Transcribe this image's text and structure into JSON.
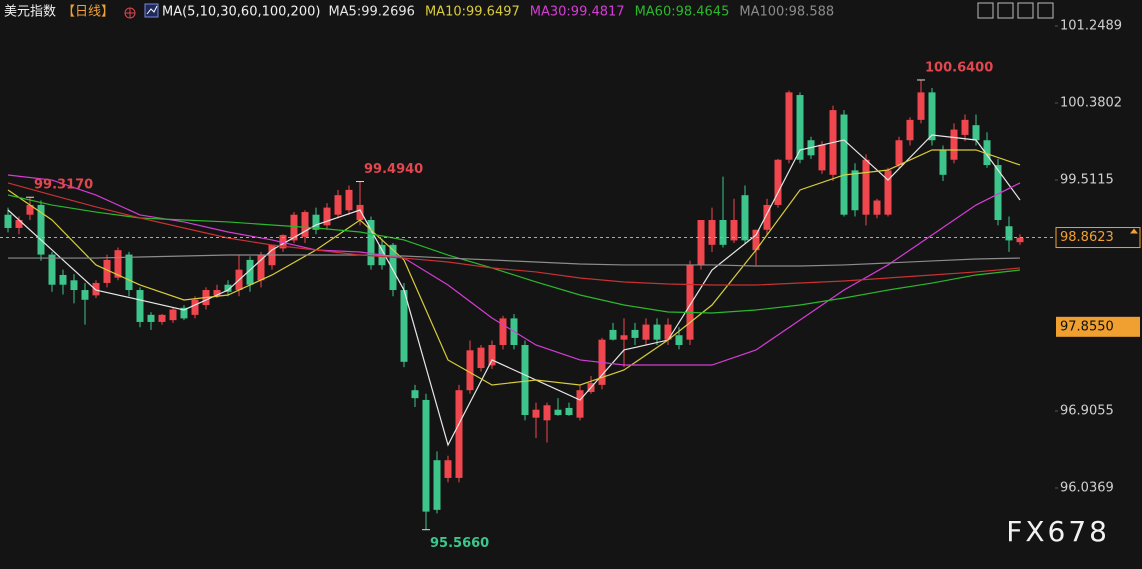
{
  "header": {
    "name": "美元指数",
    "period": "【日线】",
    "ma_params": "MA(5,10,30,60,100,200)"
  },
  "chart_data": {
    "type": "candlestick",
    "up_color": "#f0464e",
    "down_color": "#3ec58c",
    "ylim": [
      95.1227,
      101.5422
    ],
    "yticks": [
      101.2489,
      100.3802,
      99.5115,
      96.9055,
      96.0369
    ],
    "last_price": 98.8623,
    "last_price_color": "#f0a035",
    "marker_price": {
      "value": 97.855,
      "label": "97.8550"
    },
    "marker_color": "#f0a030",
    "candles": [
      [
        99.12,
        99.2,
        98.92,
        98.97
      ],
      [
        98.97,
        99.1,
        98.9,
        99.06
      ],
      [
        99.12,
        99.317,
        99.06,
        99.23
      ],
      [
        99.23,
        99.28,
        98.6,
        98.67
      ],
      [
        98.67,
        98.7,
        98.25,
        98.33
      ],
      [
        98.44,
        98.5,
        98.22,
        98.33
      ],
      [
        98.38,
        98.45,
        98.12,
        98.27
      ],
      [
        98.27,
        98.35,
        97.88,
        98.16
      ],
      [
        98.21,
        98.38,
        98.18,
        98.35
      ],
      [
        98.35,
        98.67,
        98.3,
        98.61
      ],
      [
        98.41,
        98.75,
        98.38,
        98.72
      ],
      [
        98.67,
        98.7,
        98.2,
        98.27
      ],
      [
        98.27,
        98.3,
        97.85,
        97.91
      ],
      [
        97.99,
        98.02,
        97.82,
        97.91
      ],
      [
        97.91,
        98.0,
        97.88,
        97.99
      ],
      [
        97.93,
        98.07,
        97.9,
        98.05
      ],
      [
        98.07,
        98.1,
        97.93,
        97.95
      ],
      [
        97.99,
        98.2,
        97.95,
        98.16
      ],
      [
        98.1,
        98.3,
        98.05,
        98.27
      ],
      [
        98.21,
        98.33,
        98.18,
        98.27
      ],
      [
        98.33,
        98.38,
        98.2,
        98.25
      ],
      [
        98.27,
        98.67,
        98.2,
        98.5
      ],
      [
        98.61,
        98.65,
        98.25,
        98.33
      ],
      [
        98.38,
        98.7,
        98.3,
        98.67
      ],
      [
        98.55,
        98.78,
        98.5,
        98.78
      ],
      [
        98.74,
        98.9,
        98.7,
        98.89
      ],
      [
        98.83,
        99.15,
        98.8,
        99.12
      ],
      [
        98.87,
        99.17,
        98.8,
        99.15
      ],
      [
        99.12,
        99.2,
        98.9,
        98.95
      ],
      [
        99.0,
        99.25,
        98.95,
        99.2
      ],
      [
        99.12,
        99.4,
        99.08,
        99.34
      ],
      [
        99.17,
        99.45,
        99.12,
        99.4
      ],
      [
        99.06,
        99.494,
        99.0,
        99.23
      ],
      [
        99.06,
        99.1,
        98.5,
        98.55
      ],
      [
        98.78,
        98.85,
        98.5,
        98.55
      ],
      [
        98.78,
        98.8,
        98.2,
        98.27
      ],
      [
        98.27,
        98.35,
        97.4,
        97.46
      ],
      [
        97.14,
        97.2,
        96.95,
        97.05
      ],
      [
        97.03,
        97.1,
        95.566,
        95.77
      ],
      [
        96.35,
        96.45,
        95.75,
        95.79
      ],
      [
        96.15,
        96.4,
        96.1,
        96.35
      ],
      [
        96.15,
        97.2,
        96.1,
        97.14
      ],
      [
        97.14,
        97.7,
        97.1,
        97.59
      ],
      [
        97.39,
        97.65,
        97.35,
        97.62
      ],
      [
        97.42,
        97.7,
        97.38,
        97.65
      ],
      [
        97.65,
        97.98,
        97.6,
        97.95
      ],
      [
        97.95,
        98.0,
        97.6,
        97.65
      ],
      [
        97.65,
        97.7,
        96.8,
        96.86
      ],
      [
        96.83,
        97.0,
        96.6,
        96.92
      ],
      [
        96.8,
        97.0,
        96.55,
        96.97
      ],
      [
        96.92,
        97.05,
        96.85,
        96.86
      ],
      [
        96.94,
        97.0,
        96.85,
        96.86
      ],
      [
        96.83,
        97.2,
        96.8,
        97.14
      ],
      [
        97.12,
        97.3,
        97.1,
        97.22
      ],
      [
        97.2,
        97.73,
        97.15,
        97.71
      ],
      [
        97.82,
        97.9,
        97.7,
        97.71
      ],
      [
        97.71,
        97.95,
        97.4,
        97.76
      ],
      [
        97.82,
        97.9,
        97.65,
        97.73
      ],
      [
        97.71,
        97.95,
        97.65,
        97.88
      ],
      [
        97.88,
        97.95,
        97.65,
        97.71
      ],
      [
        97.71,
        97.95,
        97.65,
        97.88
      ],
      [
        97.76,
        97.85,
        97.6,
        97.65
      ],
      [
        97.71,
        98.6,
        97.65,
        98.55
      ],
      [
        98.55,
        99.0,
        98.5,
        99.06
      ],
      [
        98.78,
        99.2,
        98.7,
        99.06
      ],
      [
        99.06,
        99.55,
        98.75,
        98.78
      ],
      [
        98.83,
        99.3,
        98.8,
        99.06
      ],
      [
        99.34,
        99.45,
        98.8,
        98.83
      ],
      [
        98.72,
        98.95,
        98.55,
        98.95
      ],
      [
        98.95,
        99.3,
        98.9,
        99.23
      ],
      [
        99.23,
        99.75,
        99.2,
        99.74
      ],
      [
        99.74,
        100.52,
        99.7,
        100.5
      ],
      [
        100.47,
        100.5,
        99.7,
        99.74
      ],
      [
        99.96,
        100.0,
        99.75,
        99.79
      ],
      [
        99.62,
        99.95,
        99.58,
        99.91
      ],
      [
        99.57,
        100.35,
        99.5,
        100.3
      ],
      [
        100.25,
        100.3,
        99.1,
        99.12
      ],
      [
        99.62,
        99.7,
        99.1,
        99.17
      ],
      [
        99.12,
        99.8,
        99.0,
        99.74
      ],
      [
        99.12,
        99.3,
        99.08,
        99.28
      ],
      [
        99.12,
        99.65,
        99.1,
        99.62
      ],
      [
        99.68,
        100.0,
        99.65,
        99.96
      ],
      [
        99.96,
        100.22,
        99.9,
        100.19
      ],
      [
        100.19,
        100.64,
        100.15,
        100.5
      ],
      [
        100.5,
        100.55,
        99.9,
        99.96
      ],
      [
        99.85,
        99.9,
        99.5,
        99.57
      ],
      [
        99.74,
        100.15,
        99.7,
        100.08
      ],
      [
        100.02,
        100.25,
        99.95,
        100.19
      ],
      [
        100.13,
        100.25,
        99.9,
        99.96
      ],
      [
        99.96,
        100.05,
        99.65,
        99.68
      ],
      [
        99.68,
        99.75,
        99.0,
        99.06
      ],
      [
        98.99,
        99.1,
        98.7,
        98.83
      ],
      [
        98.81,
        98.9,
        98.78,
        98.86
      ]
    ],
    "ma_x": [
      0,
      4,
      8,
      12,
      16,
      20,
      24,
      28,
      32,
      36,
      40,
      44,
      48,
      52,
      56,
      60,
      64,
      68,
      72,
      76,
      80,
      84,
      88,
      92
    ],
    "series": [
      {
        "name": "MA5:99.2696",
        "color": "#e6e6e6",
        "values": [
          99.173,
          98.722,
          98.27,
          98.158,
          98.045,
          98.27,
          98.722,
          99.004,
          99.173,
          98.27,
          96.522,
          97.481,
          97.255,
          97.029,
          97.594,
          97.706,
          98.496,
          98.891,
          99.85,
          99.963,
          99.511,
          100.019,
          99.963,
          99.286
        ]
      },
      {
        "name": "MA10:99.6497",
        "color": "#d8cc3c",
        "values": [
          99.399,
          99.06,
          98.553,
          98.327,
          98.158,
          98.214,
          98.44,
          98.722,
          99.06,
          98.609,
          97.481,
          97.199,
          97.255,
          97.199,
          97.368,
          97.706,
          98.101,
          98.722,
          99.399,
          99.568,
          99.624,
          99.85,
          99.85,
          99.681
        ]
      },
      {
        "name": "MA30:99.4817",
        "color": "#d63cd6",
        "values": [
          99.568,
          99.511,
          99.342,
          99.117,
          99.038,
          98.925,
          98.835,
          98.722,
          98.699,
          98.631,
          98.327,
          97.955,
          97.65,
          97.481,
          97.424,
          97.424,
          97.424,
          97.594,
          97.932,
          98.27,
          98.553,
          98.891,
          99.229,
          99.478
        ]
      },
      {
        "name": "MA60:98.4645",
        "color": "#2cb82c",
        "values": [
          99.342,
          99.229,
          99.15,
          99.083,
          99.06,
          99.038,
          99.004,
          98.97,
          98.925,
          98.835,
          98.665,
          98.519,
          98.361,
          98.214,
          98.101,
          98.022,
          98.011,
          98.045,
          98.101,
          98.18,
          98.27,
          98.349,
          98.44,
          98.496
        ]
      },
      {
        "name": "MA100:98.588",
        "color": "#8c8c8c",
        "values": [
          98.631,
          98.631,
          98.631,
          98.643,
          98.654,
          98.665,
          98.665,
          98.665,
          98.665,
          98.654,
          98.631,
          98.609,
          98.586,
          98.564,
          98.553,
          98.553,
          98.553,
          98.541,
          98.541,
          98.553,
          98.575,
          98.598,
          98.62,
          98.631
        ]
      },
      {
        "color": "#c83232",
        "values": [
          99.478,
          99.342,
          99.207,
          99.083,
          98.97,
          98.857,
          98.778,
          98.722,
          98.665,
          98.631,
          98.586,
          98.519,
          98.474,
          98.406,
          98.361,
          98.338,
          98.327,
          98.327,
          98.349,
          98.372,
          98.406,
          98.44,
          98.474,
          98.519
        ]
      }
    ],
    "annotations": [
      {
        "index": 2,
        "value": 99.317,
        "label": "99.3170",
        "color": "#e0474f",
        "pos": "above"
      },
      {
        "index": 32,
        "value": 99.494,
        "label": "99.4940",
        "color": "#e0474f",
        "pos": "above"
      },
      {
        "index": 83,
        "value": 100.64,
        "label": "100.6400",
        "color": "#e0474f",
        "pos": "above"
      },
      {
        "index": 38,
        "value": 95.566,
        "label": "95.5660",
        "color": "#3ec58c",
        "pos": "below"
      }
    ]
  },
  "watermark": "FX678"
}
